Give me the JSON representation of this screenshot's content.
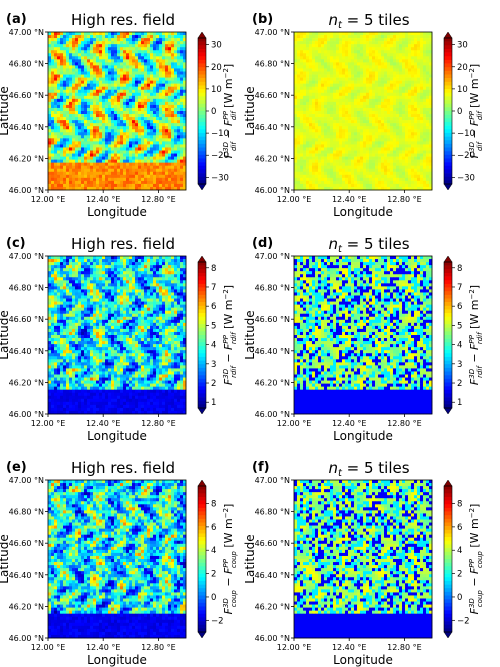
{
  "chart_data": [
    {
      "type": "heatmap",
      "panel_label": "(a)",
      "title": "High res. field",
      "xlabel": "Longitude",
      "ylabel": "Latitude",
      "xticks": [
        "12.00 °E",
        "12.40 °E",
        "12.80 °E"
      ],
      "yticks": [
        "47.00 °N",
        "46.80 °N",
        "46.60 °N",
        "46.40 °N",
        "46.20 °N",
        "46.00 °N"
      ],
      "x_range": [
        12.0,
        13.0
      ],
      "y_range": [
        46.0,
        47.0
      ],
      "colorbar_label": "F^{3D}_{dif} − F^{PP}_{dif} [W m^{-2}]",
      "colorbar_ticks": [
        30,
        20,
        10,
        0,
        -10,
        -20,
        -30
      ],
      "colorbar_range": [
        -33,
        33
      ],
      "colormap": "jet",
      "field": "detailed"
    },
    {
      "type": "heatmap",
      "panel_label": "(b)",
      "title": "n_t = 5 tiles",
      "xlabel": "Longitude",
      "ylabel": "Latitude",
      "xticks": [
        "12.00 °E",
        "12.40 °E",
        "12.80 °E"
      ],
      "yticks": [
        "47.00 °N",
        "46.80 °N",
        "46.60 °N",
        "46.40 °N",
        "46.20 °N",
        "46.00 °N"
      ],
      "x_range": [
        12.0,
        13.0
      ],
      "y_range": [
        46.0,
        47.0
      ],
      "colorbar_label": "F^{3D}_{dif} − F^{PP}_{dif} [W m^{-2}]",
      "colorbar_ticks": [
        30,
        20,
        10,
        0,
        -10,
        -20,
        -30
      ],
      "colorbar_range": [
        -33,
        33
      ],
      "colormap": "jet",
      "field": "tiled"
    },
    {
      "type": "heatmap",
      "panel_label": "(c)",
      "title": "High res. field",
      "xlabel": "Longitude",
      "ylabel": "Latitude",
      "xticks": [
        "12.00 °E",
        "12.40 °E",
        "12.80 °E"
      ],
      "yticks": [
        "47.00 °N",
        "46.80 °N",
        "46.60 °N",
        "46.40 °N",
        "46.20 °N",
        "46.00 °N"
      ],
      "x_range": [
        12.0,
        13.0
      ],
      "y_range": [
        46.0,
        47.0
      ],
      "colorbar_label": "F^{3D}_{rdif} − F^{PP}_{rdif} [W m^{-2}]",
      "colorbar_ticks": [
        8,
        7,
        6,
        5,
        4,
        3,
        2,
        1
      ],
      "colorbar_range": [
        0.7,
        8.3
      ],
      "colormap": "jet",
      "field": "detailed"
    },
    {
      "type": "heatmap",
      "panel_label": "(d)",
      "title": "n_t = 5 tiles",
      "xlabel": "Longitude",
      "ylabel": "Latitude",
      "xticks": [
        "12.00 °E",
        "12.40 °E",
        "12.80 °E"
      ],
      "yticks": [
        "47.00 °N",
        "46.80 °N",
        "46.60 °N",
        "46.40 °N",
        "46.20 °N",
        "46.00 °N"
      ],
      "x_range": [
        12.0,
        13.0
      ],
      "y_range": [
        46.0,
        47.0
      ],
      "colorbar_label": "F^{3D}_{rdif} − F^{PP}_{rdif} [W m^{-2}]",
      "colorbar_ticks": [
        8,
        7,
        6,
        5,
        4,
        3,
        2,
        1
      ],
      "colorbar_range": [
        0.7,
        8.3
      ],
      "colormap": "jet",
      "field": "tiled"
    },
    {
      "type": "heatmap",
      "panel_label": "(e)",
      "title": "High res. field",
      "xlabel": "Longitude",
      "ylabel": "Latitude",
      "xticks": [
        "12.00 °E",
        "12.40 °E",
        "12.80 °E"
      ],
      "yticks": [
        "47.00 °N",
        "46.80 °N",
        "46.60 °N",
        "46.40 °N",
        "46.20 °N",
        "46.00 °N"
      ],
      "x_range": [
        12.0,
        13.0
      ],
      "y_range": [
        46.0,
        47.0
      ],
      "colorbar_label": "F^{3D}_{coup} − F^{PP}_{coup} [W m^{-2}]",
      "colorbar_ticks": [
        8,
        6,
        4,
        2,
        0,
        -2
      ],
      "colorbar_range": [
        -3,
        9.5
      ],
      "colormap": "jet",
      "field": "detailed"
    },
    {
      "type": "heatmap",
      "panel_label": "(f)",
      "title": "n_t = 5 tiles",
      "xlabel": "Longitude",
      "ylabel": "Latitude",
      "xticks": [
        "12.00 °E",
        "12.40 °E",
        "12.80 °E"
      ],
      "yticks": [
        "47.00 °N",
        "46.80 °N",
        "46.60 °N",
        "46.40 °N",
        "46.20 °N",
        "46.00 °N"
      ],
      "x_range": [
        12.0,
        13.0
      ],
      "y_range": [
        46.0,
        47.0
      ],
      "colorbar_label": "F^{3D}_{coup} − F^{PP}_{coup} [W m^{-2}]",
      "colorbar_ticks": [
        8,
        6,
        4,
        2,
        0,
        -2
      ],
      "colorbar_range": [
        -3,
        9.5
      ],
      "colormap": "jet",
      "field": "tiled"
    }
  ]
}
